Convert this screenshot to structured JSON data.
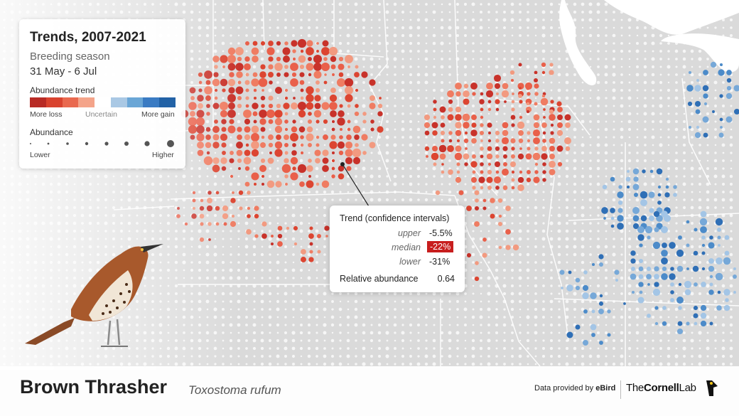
{
  "legend": {
    "title": "Trends, 2007-2021",
    "season": "Breeding season",
    "dates": "31 May - 6 Jul",
    "trend_label": "Abundance trend",
    "trend_colors": [
      "#b82b25",
      "#d9432f",
      "#e9694f",
      "#f4a48a",
      "#ffffff",
      "#a9c8e4",
      "#6aa6d6",
      "#3a7bc3",
      "#2262a6"
    ],
    "more_loss": "More loss",
    "uncertain": "Uncertain",
    "more_gain": "More gain",
    "abundance_label": "Abundance",
    "lower": "Lower",
    "higher": "Higher"
  },
  "tooltip": {
    "title": "Trend (confidence intervals)",
    "upper_label": "upper",
    "upper_value": "-5.5%",
    "median_label": "median",
    "median_value": "-22%",
    "lower_label": "lower",
    "lower_value": "-31%",
    "rel_ab_label": "Relative abundance",
    "rel_ab_value": "0.64"
  },
  "species": {
    "common_name": "Brown Thrasher",
    "scientific_name": "Toxostoma rufum"
  },
  "credits": {
    "data_prefix": "Data provided by ",
    "data_source": "eBird",
    "org_light": "The",
    "org_bold": "Cornell",
    "org_suffix": "Lab"
  },
  "colors": {
    "decline": "#e04a35",
    "increase": "#3b7cc4",
    "median_badge": "#c81e1e",
    "lake": "#ffffff"
  }
}
